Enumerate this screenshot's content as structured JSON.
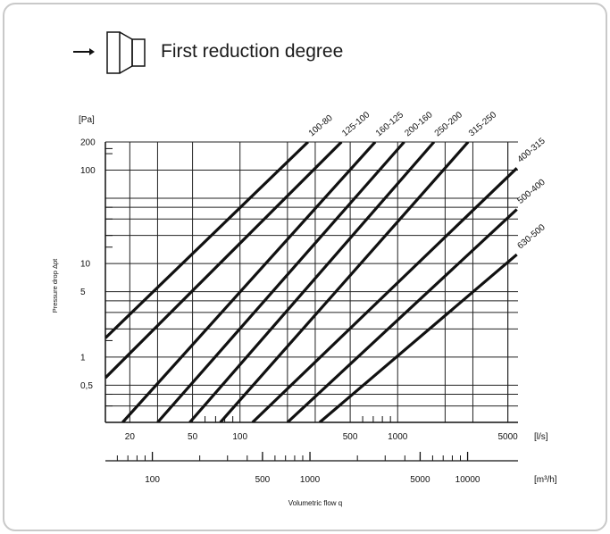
{
  "header": {
    "title": "First reduction degree",
    "icon": "reducer-fitting-icon",
    "arrow_icon": "flow-direction-arrow-icon"
  },
  "chart_data": {
    "type": "line",
    "title": "First reduction degree",
    "xlabel": "Volumetric flow q",
    "ylabel": "Pressure drop Δpt",
    "y_unit": "[Pa]",
    "x_unit": "[l/s]",
    "x2_unit": "[m³/h]",
    "x_scale": "log",
    "y_scale": "log",
    "xlim": [
      14,
      5800
    ],
    "ylim": [
      0.2,
      200
    ],
    "grid": true,
    "y_tick_labels": [
      "200",
      "100",
      "10",
      "5",
      "1",
      "0,5"
    ],
    "y_tick_values": [
      200,
      100,
      10,
      5,
      1,
      0.5
    ],
    "x_tick_labels": [
      "20",
      "50",
      "100",
      "500",
      "1000",
      "5000"
    ],
    "x_tick_values": [
      20,
      50,
      100,
      500,
      1000,
      5000
    ],
    "x2_tick_labels": [
      "100",
      "500",
      "1000",
      "5000",
      "10000"
    ],
    "x2_tick_values_ls": [
      27.8,
      138.9,
      277.8,
      1388.9,
      2777.8
    ],
    "series": [
      {
        "name": "100-80",
        "x": [
          14,
          270
        ],
        "y": [
          1.6,
          200
        ]
      },
      {
        "name": "125-100",
        "x": [
          14,
          440
        ],
        "y": [
          0.6,
          200
        ]
      },
      {
        "name": "160-125",
        "x": [
          18,
          720
        ],
        "y": [
          0.2,
          200
        ]
      },
      {
        "name": "200-160",
        "x": [
          30,
          1100
        ],
        "y": [
          0.2,
          200
        ]
      },
      {
        "name": "250-200",
        "x": [
          48,
          1700
        ],
        "y": [
          0.2,
          200
        ]
      },
      {
        "name": "315-250",
        "x": [
          75,
          2800
        ],
        "y": [
          0.2,
          200
        ]
      },
      {
        "name": "400-315",
        "x": [
          120,
          5700
        ],
        "y": [
          0.2,
          105
        ]
      },
      {
        "name": "500-400",
        "x": [
          200,
          5700
        ],
        "y": [
          0.2,
          38
        ]
      },
      {
        "name": "630-500",
        "x": [
          320,
          5700
        ],
        "y": [
          0.2,
          12.5
        ]
      }
    ]
  }
}
